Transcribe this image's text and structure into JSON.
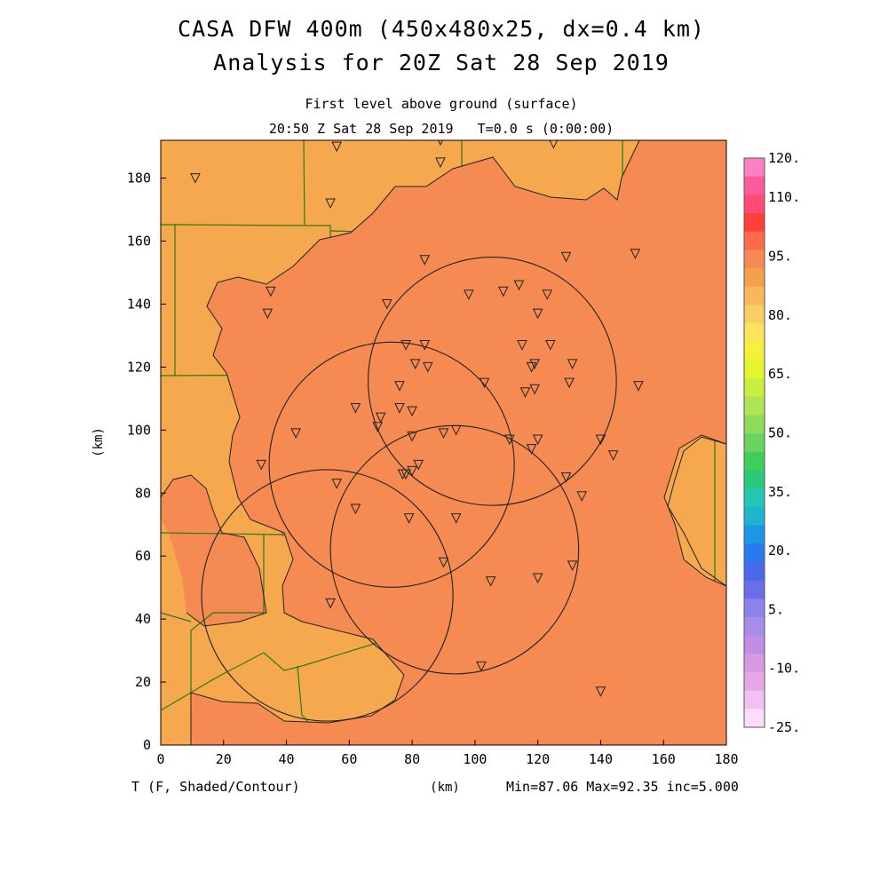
{
  "title_line1": "CASA DFW 400m (450x480x25, dx=0.4 km)",
  "title_line2": "Analysis for 20Z Sat 28 Sep 2019",
  "level_label": "First level above ground (surface)",
  "time_label": "20:50 Z Sat 28 Sep 2019   T=0.0 s (0:00:00)",
  "x_axis": {
    "unit_label": "(km)",
    "range": [
      0,
      180
    ],
    "ticks": [
      "0",
      "20",
      "40",
      "60",
      "80",
      "100",
      "120",
      "140",
      "160",
      "180"
    ]
  },
  "y_axis": {
    "unit_label": "(km)",
    "range": [
      0,
      192
    ],
    "ticks": [
      "0",
      "20",
      "40",
      "60",
      "80",
      "100",
      "120",
      "140",
      "160",
      "180"
    ]
  },
  "field_label": "T (F, Shaded/Contour)",
  "stats_label": "Min=87.06 Max=92.35 inc=5.000",
  "colorbar": {
    "labels": [
      "120.",
      "110.",
      "95.",
      "80.",
      "65.",
      "50.",
      "35.",
      "20.",
      "5.",
      "-10.",
      "-25."
    ],
    "colors": [
      "#ff7fc4",
      "#ff5a9c",
      "#ff4a78",
      "#ff4038",
      "#ff6a4a",
      "#f58b52",
      "#f5a04a",
      "#f6b85a",
      "#f8cf62",
      "#fde25a",
      "#f5f03a",
      "#e4f52e",
      "#c8ee40",
      "#b0e455",
      "#8fdc5a",
      "#6ad460",
      "#3ecf5a",
      "#2ac87a",
      "#22c8b4",
      "#1fb4d0",
      "#1e96e6",
      "#2878f0",
      "#4a68ea",
      "#6a6ee8",
      "#8a84ea",
      "#a48ee8",
      "#c08ee4",
      "#d69ae2",
      "#e8a6e8",
      "#f2c0f2",
      "#fbdcfb"
    ]
  },
  "map_colors": {
    "warm": "#f58b52",
    "cool": "#f6a84e",
    "county_line": "#2d7a14",
    "contour": "#222222"
  },
  "radars": [
    {
      "cx": 105.5,
      "cy": 115.5,
      "r": 39.5
    },
    {
      "cx": 73.5,
      "cy": 89.0,
      "r": 39
    },
    {
      "cx": 93.5,
      "cy": 62.0,
      "r": 39.5
    },
    {
      "cx": 53.0,
      "cy": 47.5,
      "r": 40
    }
  ],
  "stations": [
    [
      11,
      180
    ],
    [
      56,
      190
    ],
    [
      89,
      192
    ],
    [
      89,
      185
    ],
    [
      125,
      191
    ],
    [
      54,
      172
    ],
    [
      151,
      156
    ],
    [
      129,
      155
    ],
    [
      84,
      154
    ],
    [
      35,
      144
    ],
    [
      34,
      137
    ],
    [
      72,
      140
    ],
    [
      98,
      143
    ],
    [
      109,
      144
    ],
    [
      114,
      146
    ],
    [
      123,
      143
    ],
    [
      120,
      137
    ],
    [
      78,
      127
    ],
    [
      84,
      127
    ],
    [
      115,
      127
    ],
    [
      124,
      127
    ],
    [
      81,
      121
    ],
    [
      85,
      120
    ],
    [
      119,
      121
    ],
    [
      118,
      120
    ],
    [
      131,
      121
    ],
    [
      103,
      115
    ],
    [
      76,
      114
    ],
    [
      130,
      115
    ],
    [
      152,
      114
    ],
    [
      116,
      112
    ],
    [
      119,
      113
    ],
    [
      62,
      107
    ],
    [
      76,
      107
    ],
    [
      80,
      106
    ],
    [
      70,
      104
    ],
    [
      69,
      101
    ],
    [
      43,
      99
    ],
    [
      94,
      100
    ],
    [
      90,
      99
    ],
    [
      80,
      98
    ],
    [
      111,
      97
    ],
    [
      120,
      97
    ],
    [
      140,
      97
    ],
    [
      118,
      94
    ],
    [
      32,
      89
    ],
    [
      144,
      92
    ],
    [
      82,
      89
    ],
    [
      80,
      87
    ],
    [
      78,
      86
    ],
    [
      77,
      86
    ],
    [
      129,
      85
    ],
    [
      56,
      83
    ],
    [
      134,
      79
    ],
    [
      62,
      75
    ],
    [
      79,
      72
    ],
    [
      94,
      72
    ],
    [
      90,
      58
    ],
    [
      131,
      57
    ],
    [
      120,
      53
    ],
    [
      105,
      52
    ],
    [
      54,
      45
    ],
    [
      102,
      25
    ],
    [
      140,
      17
    ]
  ]
}
